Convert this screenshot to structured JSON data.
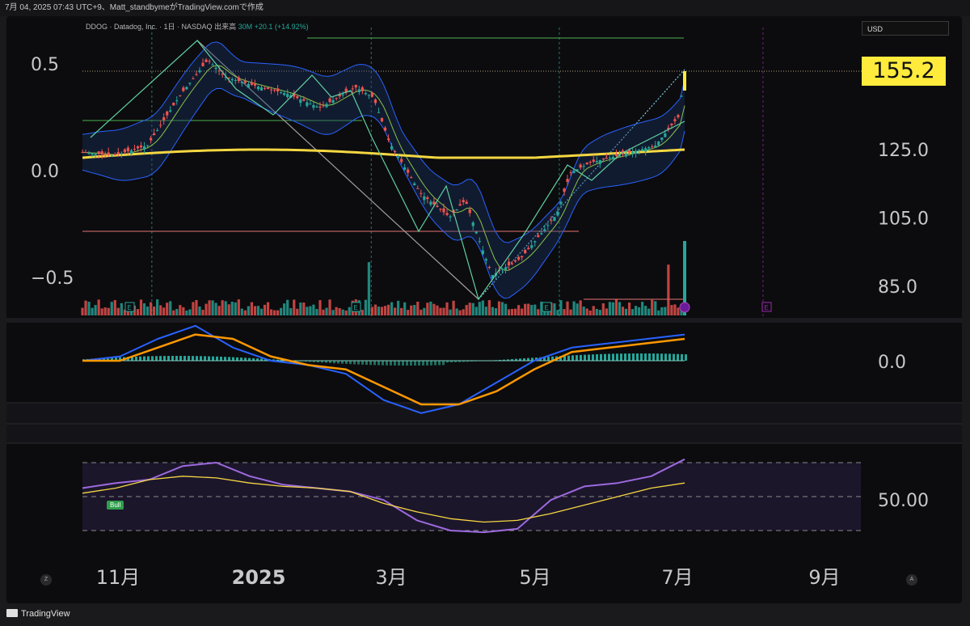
{
  "header": {
    "attribution": "7月 04, 2025 07:43 UTC+9、Matt_standbymeがTradingView.comで作成"
  },
  "symbol": {
    "label": "DDOG · Datadog, Inc. · 1日 · NASDAQ",
    "volume_label": "出来高",
    "volume_value": "30M",
    "change": "+20.1 (+14.92%)"
  },
  "currency": "USD",
  "last_price": "155.2",
  "footer": {
    "brand": "TradingView",
    "zoom_left": "Z",
    "zoom_right": "A"
  },
  "markers": {
    "earnings": "E",
    "bull": "Bull"
  },
  "colors": {
    "up": "#26a69a",
    "down": "#ef5350",
    "ma200": "#f5d742",
    "bb": "#2962ff",
    "ma_green": "#8bc34a",
    "macd": "#2962ff",
    "signal": "#ff9800",
    "rsi": "#9c6ade",
    "rsi_ma": "#f5d742",
    "accent": "#ffeb3b"
  },
  "chart_data": [
    {
      "type": "candlestick",
      "panel": "price",
      "right_axis_ticks": [
        {
          "value": 125,
          "label": "125.0"
        },
        {
          "value": 105,
          "label": "105.0"
        },
        {
          "value": 85,
          "label": "85.0"
        }
      ],
      "left_axis_ticks": [
        {
          "value": 0.5,
          "label": "0.5"
        },
        {
          "value": 0.0,
          "label": "0.0"
        },
        {
          "value": -0.5,
          "label": "-0.5"
        }
      ],
      "x_ticks": [
        "11月",
        "2025",
        "3月",
        "5月",
        "7月",
        "9月"
      ],
      "approx_close_path": [
        {
          "date": "2024-10-07",
          "value": 124
        },
        {
          "date": "2024-10-21",
          "value": 123
        },
        {
          "date": "2024-11-05",
          "value": 126
        },
        {
          "date": "2024-11-12",
          "value": 133
        },
        {
          "date": "2024-11-20",
          "value": 141
        },
        {
          "date": "2024-12-02",
          "value": 151
        },
        {
          "date": "2024-12-10",
          "value": 146
        },
        {
          "date": "2024-12-20",
          "value": 144
        },
        {
          "date": "2025-01-07",
          "value": 141
        },
        {
          "date": "2025-01-21",
          "value": 137
        },
        {
          "date": "2025-02-06",
          "value": 143
        },
        {
          "date": "2025-02-14",
          "value": 140
        },
        {
          "date": "2025-02-21",
          "value": 127
        },
        {
          "date": "2025-03-07",
          "value": 112
        },
        {
          "date": "2025-03-20",
          "value": 105
        },
        {
          "date": "2025-03-27",
          "value": 110
        },
        {
          "date": "2025-04-04",
          "value": 95
        },
        {
          "date": "2025-04-08",
          "value": 88
        },
        {
          "date": "2025-04-21",
          "value": 93
        },
        {
          "date": "2025-05-07",
          "value": 106
        },
        {
          "date": "2025-05-13",
          "value": 118
        },
        {
          "date": "2025-05-22",
          "value": 121
        },
        {
          "date": "2025-06-09",
          "value": 124
        },
        {
          "date": "2025-06-20",
          "value": 126
        },
        {
          "date": "2025-07-01",
          "value": 135
        },
        {
          "date": "2025-07-03",
          "value": 155.2
        }
      ],
      "last_value": 155.2,
      "overlays": [
        "Bollinger Bands",
        "200-day MA",
        "zigzag",
        "trend lines",
        "horizontal levels"
      ]
    },
    {
      "type": "line",
      "panel": "MACD",
      "right_axis_ticks": [
        {
          "value": 0,
          "label": "0.0"
        }
      ],
      "series": [
        {
          "values_note": "MACD line",
          "values": [
            0,
            1,
            5,
            8,
            3,
            0,
            -1,
            -3,
            -9,
            -12,
            -10,
            -5,
            0,
            3,
            4,
            5,
            6
          ]
        },
        {
          "values_note": "Signal line",
          "values": [
            0,
            0,
            3,
            6,
            5,
            1,
            -1,
            -2,
            -6,
            -10,
            -10,
            -7,
            -2,
            2,
            3,
            4,
            5
          ]
        }
      ]
    },
    {
      "type": "line",
      "panel": "RSI",
      "right_axis_ticks": [
        {
          "value": 50,
          "label": "50.00"
        }
      ],
      "levels": [
        70,
        50,
        30
      ],
      "series": [
        {
          "values_note": "RSI",
          "values": [
            55,
            58,
            60,
            68,
            70,
            62,
            57,
            55,
            53,
            48,
            36,
            30,
            29,
            31,
            48,
            56,
            58,
            62,
            72
          ]
        },
        {
          "values_note": "RSI MA",
          "values": [
            52,
            55,
            60,
            62,
            61,
            58,
            56,
            55,
            53,
            46,
            41,
            37,
            35,
            36,
            40,
            45,
            50,
            55,
            58
          ]
        }
      ]
    }
  ]
}
